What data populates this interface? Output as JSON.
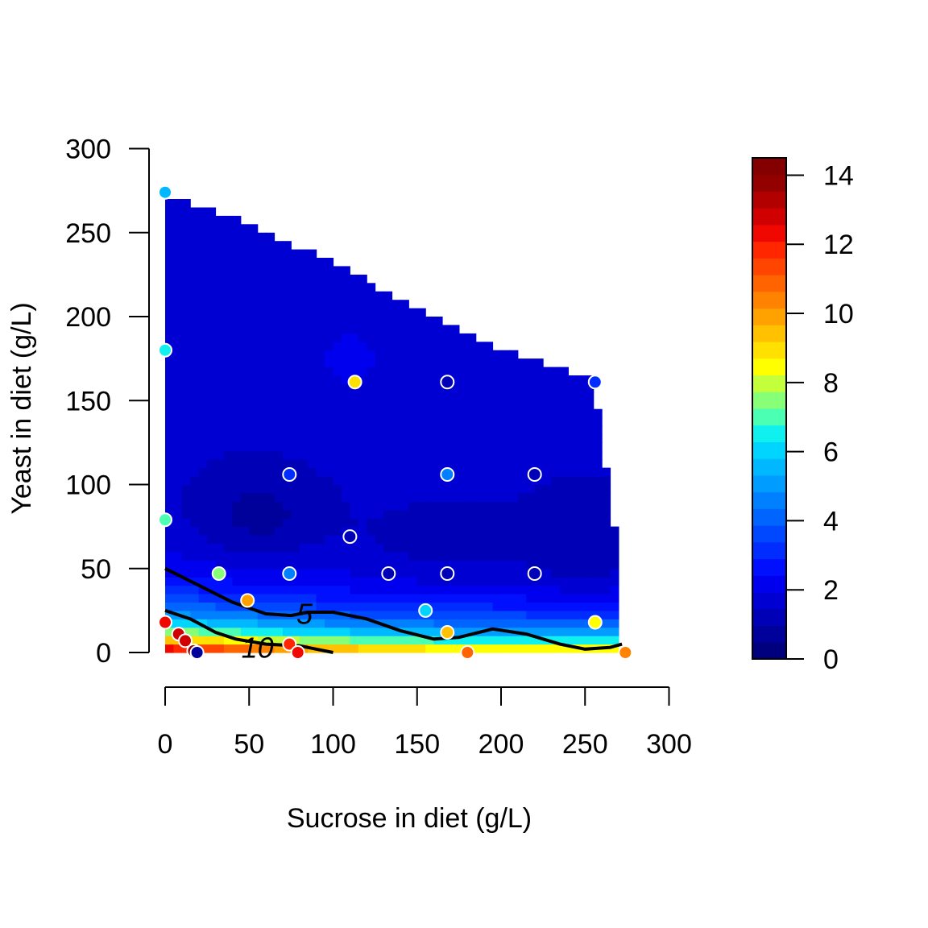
{
  "chart_data": {
    "type": "heatmap",
    "title": "",
    "xlabel": "Sucrose in diet (g/L)",
    "ylabel": "Yeast in diet (g/L)",
    "xlim": [
      0,
      300
    ],
    "ylim": [
      0,
      300
    ],
    "x_ticks": [
      "0",
      "50",
      "100",
      "150",
      "200",
      "250",
      "300"
    ],
    "y_ticks": [
      "0",
      "50",
      "100",
      "150",
      "200",
      "250",
      "300"
    ],
    "colorbar": {
      "range": [
        0,
        14.5
      ],
      "ticks": [
        "0",
        "2",
        "4",
        "6",
        "8",
        "10",
        "12",
        "14"
      ]
    },
    "contour_levels": [
      {
        "level": 5,
        "label": "5"
      },
      {
        "level": 10,
        "label": "10"
      }
    ],
    "surface_region_boundary_top": [
      {
        "x": 0,
        "y": 272
      },
      {
        "x": 20,
        "y": 265
      },
      {
        "x": 50,
        "y": 255
      },
      {
        "x": 100,
        "y": 232
      },
      {
        "x": 150,
        "y": 205
      },
      {
        "x": 200,
        "y": 180
      },
      {
        "x": 255,
        "y": 162
      },
      {
        "x": 270,
        "y": 60
      },
      {
        "x": 272,
        "y": 30
      }
    ],
    "data_points": [
      {
        "x": 0,
        "y": 274,
        "value": 5.5
      },
      {
        "x": 0,
        "y": 180,
        "value": 6.4
      },
      {
        "x": 0,
        "y": 79,
        "value": 7.2
      },
      {
        "x": 0,
        "y": 18,
        "value": 12.3
      },
      {
        "x": 8,
        "y": 11,
        "value": 12.7
      },
      {
        "x": 12,
        "y": 7,
        "value": 13.0
      },
      {
        "x": 17,
        "y": 1,
        "value": 14.0
      },
      {
        "x": 19,
        "y": 0,
        "value": 0.5
      },
      {
        "x": 32,
        "y": 47,
        "value": 7.6
      },
      {
        "x": 49,
        "y": 31,
        "value": 9.7
      },
      {
        "x": 74,
        "y": 106,
        "value": 3.2
      },
      {
        "x": 74,
        "y": 47,
        "value": 4.4
      },
      {
        "x": 74,
        "y": 5,
        "value": 11.8
      },
      {
        "x": 79,
        "y": 0,
        "value": 12.3
      },
      {
        "x": 113,
        "y": 161,
        "value": 9.0
      },
      {
        "x": 110,
        "y": 69,
        "value": 1.0
      },
      {
        "x": 133,
        "y": 47,
        "value": 1.0
      },
      {
        "x": 155,
        "y": 25,
        "value": 6.2
      },
      {
        "x": 168,
        "y": 161,
        "value": 1.0
      },
      {
        "x": 168,
        "y": 106,
        "value": 4.8
      },
      {
        "x": 168,
        "y": 47,
        "value": 1.0
      },
      {
        "x": 168,
        "y": 12,
        "value": 9.5
      },
      {
        "x": 180,
        "y": 0,
        "value": 10.8
      },
      {
        "x": 220,
        "y": 106,
        "value": 1.0
      },
      {
        "x": 220,
        "y": 47,
        "value": 1.0
      },
      {
        "x": 256,
        "y": 161,
        "value": 3.0
      },
      {
        "x": 256,
        "y": 18,
        "value": 8.4
      },
      {
        "x": 274,
        "y": 0,
        "value": 10.3
      }
    ]
  },
  "colors": {
    "palette": [
      "#00007F",
      "#00009B",
      "#0000B7",
      "#0000D3",
      "#0000EF",
      "#0010FF",
      "#002CFF",
      "#0048FF",
      "#0064FF",
      "#0080FF",
      "#009CFF",
      "#00B8FF",
      "#00D4FF",
      "#0FF0EF",
      "#4BFFB3",
      "#87FF77",
      "#C3FF3B",
      "#FFFF00",
      "#FFE000",
      "#FFC100",
      "#FFA200",
      "#FF8300",
      "#FF6400",
      "#FF4500",
      "#FF2600",
      "#F00700",
      "#D10000",
      "#B20000",
      "#930000",
      "#840000"
    ],
    "contour_line": "#000000",
    "point_outline": "#ffffff"
  }
}
